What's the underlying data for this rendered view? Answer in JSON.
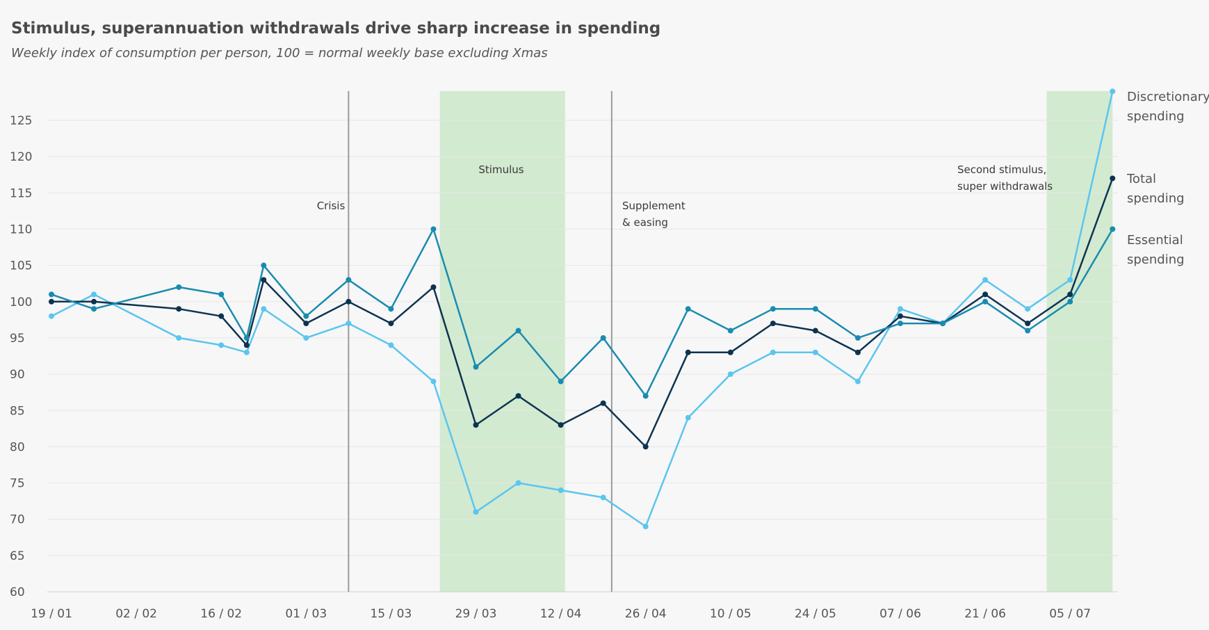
{
  "title": "Stimulus, superannuation withdrawals drive sharp increase in spending",
  "subtitle": "Weekly index of consumption per person, 100 = normal weekly base excluding Xmas",
  "chart_data": {
    "type": "line",
    "ylim": [
      60,
      128
    ],
    "yticks": [
      60,
      65,
      70,
      75,
      80,
      85,
      90,
      95,
      100,
      105,
      110,
      115,
      120,
      125
    ],
    "grid": true,
    "x": [
      "19/01",
      "26/01",
      "09/02",
      "16/02",
      "21/02",
      "23/02",
      "01/03",
      "08/03",
      "15/03",
      "22/03",
      "29/03",
      "05/04",
      "12/04",
      "19/04",
      "26/04",
      "03/05",
      "10/05",
      "17/05",
      "24/05",
      "31/05",
      "07/06",
      "14/06",
      "21/06",
      "28/06",
      "05/07",
      "12/07"
    ],
    "x_index": [
      0,
      1,
      3,
      4,
      4.6,
      5,
      6,
      7,
      8,
      9,
      10,
      11,
      12,
      13,
      14,
      15,
      16,
      17,
      18,
      19,
      20,
      21,
      22,
      23,
      24,
      25
    ],
    "xtick_labels": [
      "19 / 01",
      "02 / 02",
      "16 / 02",
      "01 / 03",
      "15 / 03",
      "29 / 03",
      "12 / 04",
      "26 / 04",
      "10 / 05",
      "24 / 05",
      "07 / 06",
      "21 / 06",
      "05 / 07"
    ],
    "series": [
      {
        "name": "Discretionary spending",
        "color": "#5bc5ef",
        "values": [
          98,
          101,
          95,
          94,
          93,
          99,
          95,
          97,
          94,
          89,
          71,
          75,
          74,
          73,
          69,
          84,
          90,
          93,
          93,
          89,
          99,
          97,
          103,
          99,
          103,
          129
        ]
      },
      {
        "name": "Total spending",
        "color": "#0d3350",
        "values": [
          100,
          100,
          99,
          98,
          94,
          103,
          97,
          100,
          97,
          102,
          83,
          87,
          83,
          86,
          80,
          93,
          93,
          97,
          96,
          93,
          98,
          97,
          101,
          97,
          101,
          117
        ]
      },
      {
        "name": "Essential spending",
        "color": "#1a8bb0",
        "values": [
          101,
          99,
          102,
          101,
          95,
          105,
          98,
          103,
          99,
          110,
          91,
          96,
          89,
          95,
          87,
          99,
          96,
          99,
          99,
          95,
          97,
          97,
          100,
          96,
          100,
          110
        ]
      }
    ],
    "shaded_periods": [
      {
        "from": 9.15,
        "to": 12.1,
        "color": "#d2ead0"
      },
      {
        "from": 23.45,
        "to": 25,
        "color": "#d2ead0"
      }
    ],
    "vertical_lines": [
      7,
      13.2
    ],
    "annotations": {
      "crisis": [
        "Crisis"
      ],
      "stimulus": [
        "Stimulus"
      ],
      "supplement": [
        "Supplement",
        "& easing"
      ],
      "second_stimulus": [
        "Second stimulus,",
        "super withdrawals"
      ]
    },
    "series_labels": {
      "discretionary": [
        "Discretionary",
        "spending"
      ],
      "total": [
        "Total",
        "spending"
      ],
      "essential": [
        "Essential",
        "spending"
      ]
    }
  }
}
